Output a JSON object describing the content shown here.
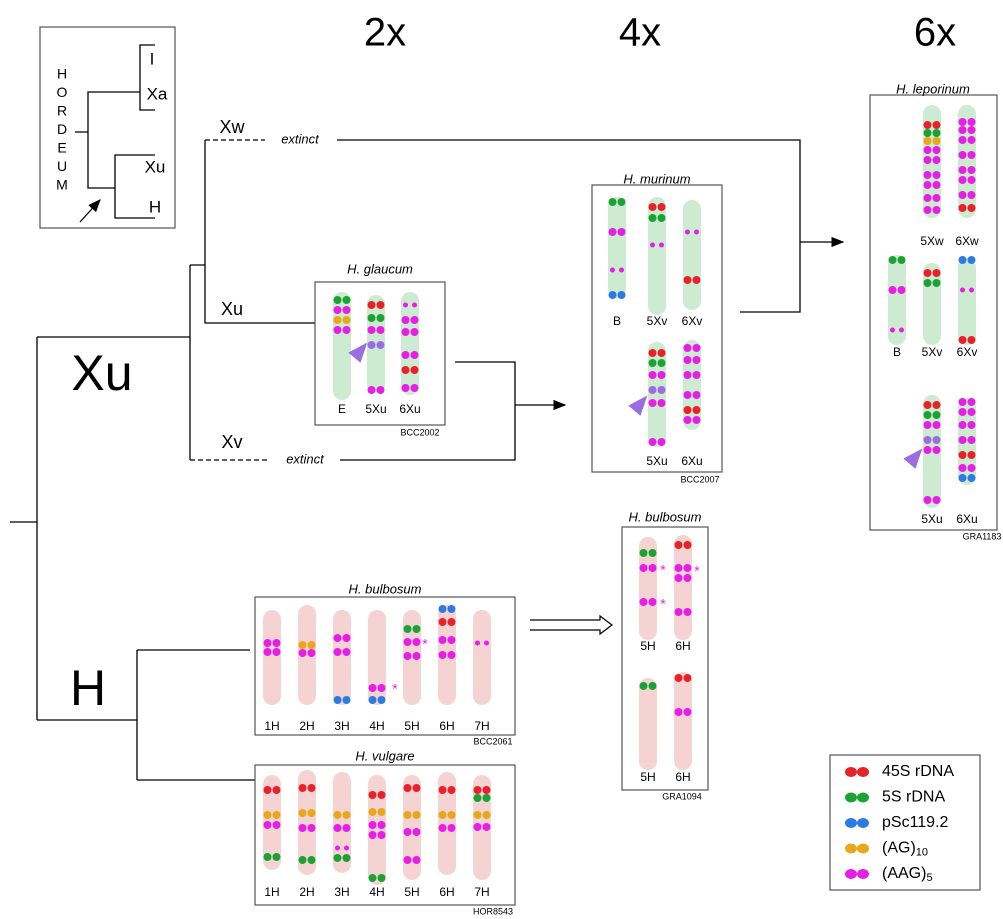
{
  "header": {
    "ploidy": [
      "2x",
      "4x",
      "6x"
    ]
  },
  "inset": {
    "genus_letters": [
      "H",
      "O",
      "R",
      "D",
      "E",
      "U",
      "M"
    ],
    "leaves": [
      "I",
      "Xa",
      "Xu",
      "H"
    ]
  },
  "tree": {
    "clade_xu": "Xu",
    "clade_h": "H",
    "branches": [
      "Xw",
      "Xu",
      "Xv"
    ],
    "extinct": [
      "extinct",
      "extinct"
    ]
  },
  "panels": [
    {
      "title": "H. glaucum",
      "chromosomes": [
        "E",
        "5Xu",
        "6Xu"
      ],
      "accession": "BCC2002"
    },
    {
      "title": "H. murinum",
      "chromosomes": [
        "B",
        "5Xv",
        "6Xv",
        "5Xu",
        "6Xu"
      ],
      "accession": "BCC2007"
    },
    {
      "title": "H. leporinum",
      "chromosomes": [
        "5Xw",
        "6Xw",
        "B",
        "5Xv",
        "6Xv",
        "5Xu",
        "6Xu"
      ],
      "accession": "GRA1183"
    },
    {
      "title": "H. bulbosum",
      "chromosomes": [
        "5H",
        "6H",
        "5H",
        "6H"
      ],
      "accession": "GRA1094"
    },
    {
      "title": "H. bulbosum",
      "chromosomes": [
        "1H",
        "2H",
        "3H",
        "4H",
        "5H",
        "6H",
        "7H"
      ],
      "accession": "BCC2061"
    },
    {
      "title": "H. vulgare",
      "chromosomes": [
        "1H",
        "2H",
        "3H",
        "4H",
        "5H",
        "6H",
        "7H"
      ],
      "accession": "HOR8543"
    }
  ],
  "asterisk": "*",
  "legend": [
    {
      "text": "45S rDNA"
    },
    {
      "text": "5S rDNA"
    },
    {
      "text": "pSc119.2"
    },
    {
      "text": "(AG)",
      "sub": "10"
    },
    {
      "text": "(AAG)",
      "sub": "5"
    }
  ]
}
